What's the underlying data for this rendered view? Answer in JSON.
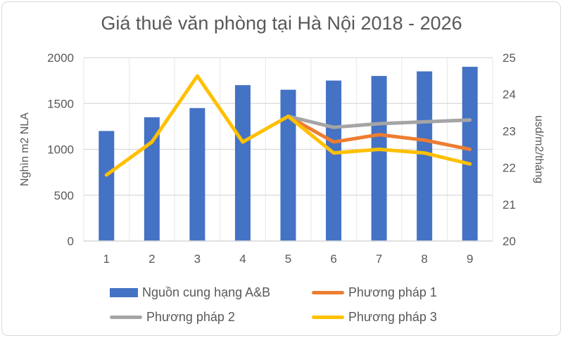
{
  "title": "Giá thuê văn phòng tại Hà Nội 2018 - 2026",
  "colors": {
    "bar_blue": "#4472C4",
    "line_orange": "#ED7D31",
    "line_gray": "#A5A5A5",
    "line_yellow": "#FFC000",
    "text": "#595959",
    "gridline": "#D9D9D9",
    "gridline_vertical": "#E7E7E7",
    "frame_border": "#D8D8D8"
  },
  "chart_data": {
    "type": "combo-bar-line",
    "title": "Giá thuê văn phòng tại Hà Nội 2018 - 2026",
    "categories": [
      "1",
      "2",
      "3",
      "4",
      "5",
      "6",
      "7",
      "8",
      "9"
    ],
    "bar_series": {
      "name": "Nguồn cung hạng A&B",
      "axis": "left",
      "color": "#4472C4",
      "values": [
        1200,
        1350,
        1450,
        1700,
        1650,
        1750,
        1800,
        1850,
        1900
      ]
    },
    "line_series": [
      {
        "name": "Phương pháp 1",
        "axis": "right",
        "color": "#ED7D31",
        "values": [
          null,
          null,
          null,
          null,
          23.4,
          22.7,
          22.9,
          22.75,
          22.5
        ]
      },
      {
        "name": "Phương pháp 2",
        "axis": "right",
        "color": "#A5A5A5",
        "values": [
          null,
          null,
          null,
          null,
          23.4,
          23.1,
          23.2,
          23.25,
          23.3
        ]
      },
      {
        "name": "Phương pháp 3",
        "axis": "right",
        "color": "#FFC000",
        "values": [
          21.8,
          22.7,
          24.5,
          22.7,
          23.4,
          22.4,
          22.5,
          22.4,
          22.1
        ]
      }
    ],
    "left_axis": {
      "title": "Nghìn m2 NLA",
      "min": 0,
      "max": 2000,
      "ticks": [
        0,
        500,
        1000,
        1500,
        2000
      ]
    },
    "right_axis": {
      "title": "usd/m2/tháng",
      "min": 20,
      "max": 25,
      "ticks": [
        20,
        21,
        22,
        23,
        24,
        25
      ]
    },
    "grid": true,
    "legend_position": "bottom"
  },
  "legend": {
    "items": [
      {
        "label": "Nguồn cung hạng A&B",
        "swatch": "bar",
        "color": "#4472C4"
      },
      {
        "label": "Phương pháp 1",
        "swatch": "line",
        "color": "#ED7D31"
      },
      {
        "label": "Phương pháp 2",
        "swatch": "line",
        "color": "#A5A5A5"
      },
      {
        "label": "Phương pháp 3",
        "swatch": "line",
        "color": "#FFC000"
      }
    ]
  }
}
